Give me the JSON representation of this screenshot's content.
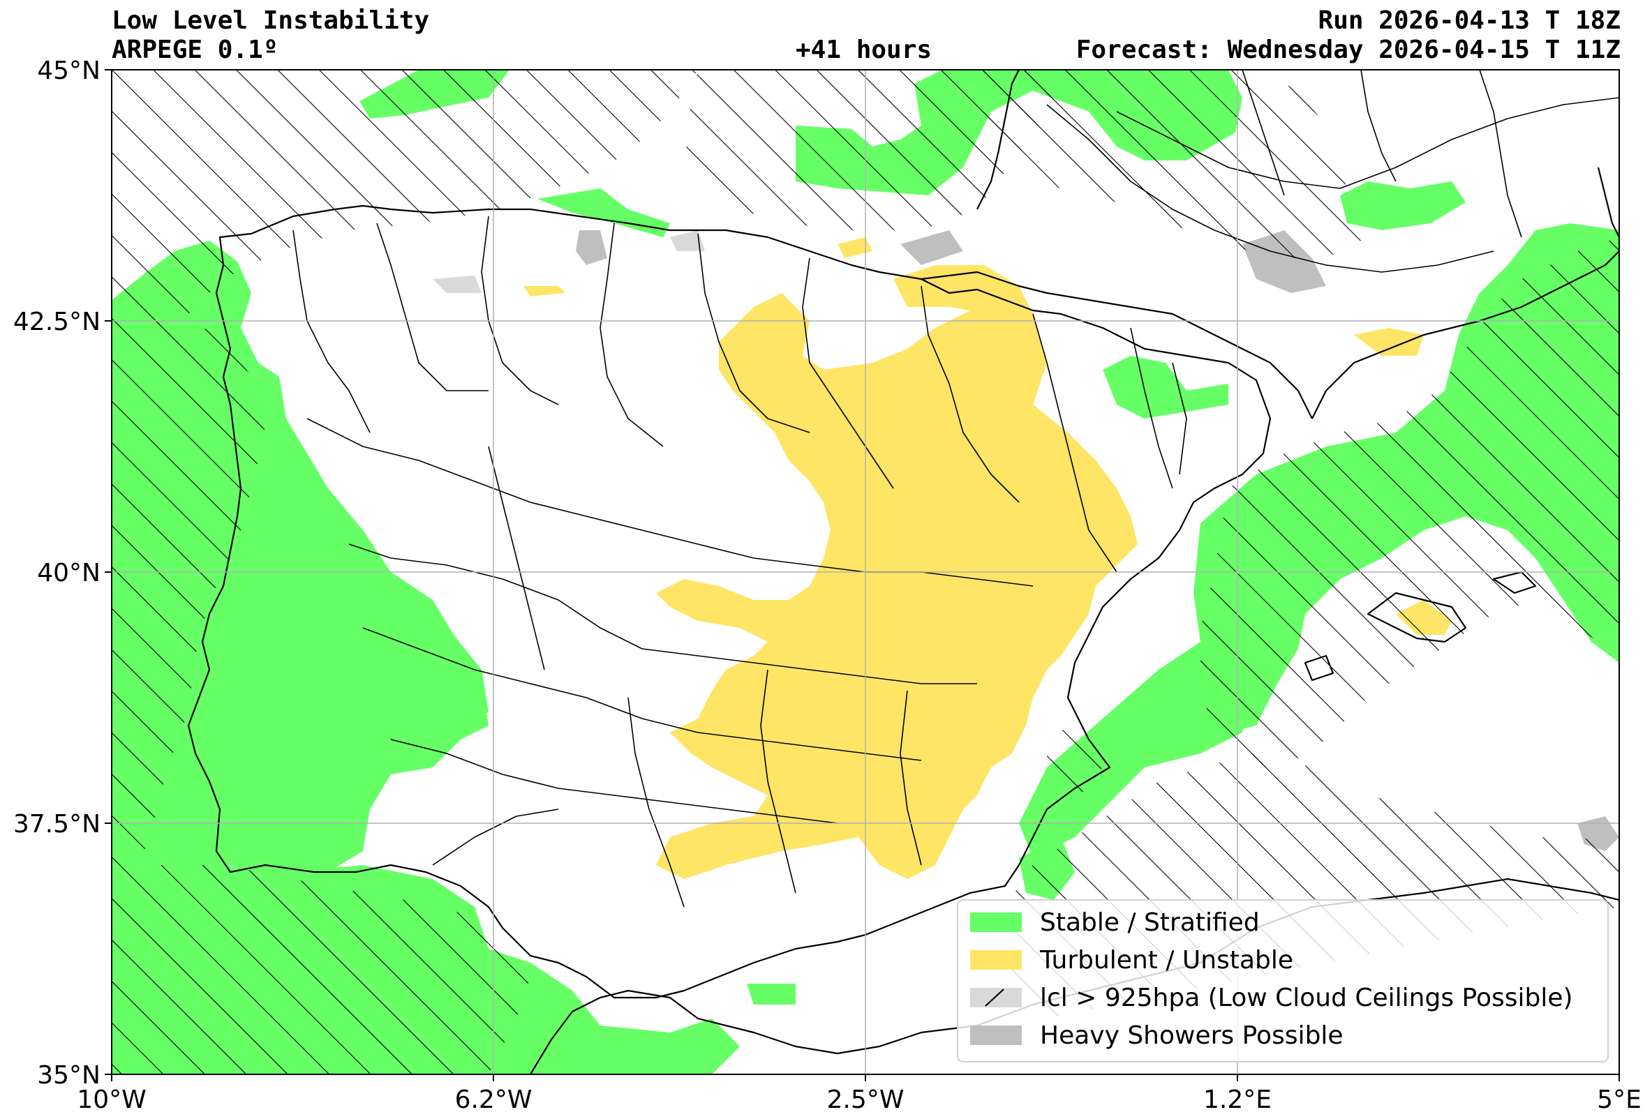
{
  "header": {
    "title": "Low Level Instability",
    "model": "ARPEGE 0.1º",
    "lead": "+41 hours",
    "run": "Run 2026-04-13 T 18Z",
    "forecast": "Forecast: Wednesday 2026-04-15 T 11Z"
  },
  "axes": {
    "lat_ticks": [
      "45°N",
      "42.5°N",
      "40°N",
      "37.5°N",
      "35°N"
    ],
    "lon_ticks": [
      "10°W",
      "6.2°W",
      "2.5°W",
      "1.2°E",
      "5°E"
    ],
    "lat_range": [
      35,
      45
    ],
    "lon_range": [
      -10,
      5
    ],
    "grid": true
  },
  "legend": {
    "placement": "bottom-right",
    "items": [
      {
        "label": "Stable / Stratified",
        "color": "#66ff66"
      },
      {
        "label": "Turbulent / Unstable",
        "color": "#ffe566"
      },
      {
        "label": "lcl > 925hpa (Low Cloud Ceilings Possible)",
        "color": "#d9d9d9"
      },
      {
        "label": "Heavy Showers Possible",
        "color": "#bfbfbf"
      }
    ]
  },
  "colors": {
    "stable": "#66ff66",
    "unstable": "#ffe566",
    "lcl": "#d9d9d9",
    "showers": "#bfbfbf",
    "land": "#ffffff",
    "grid": "#b0b0b0"
  }
}
